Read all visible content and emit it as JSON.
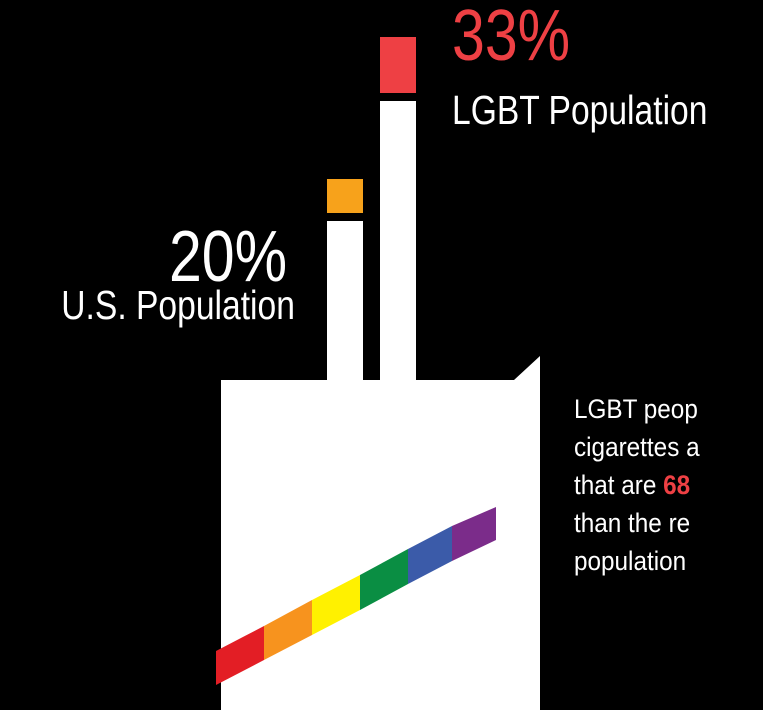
{
  "colors": {
    "background": "#000000",
    "lgbt": "#ee4044",
    "us": "#f7a21b",
    "cigarette": "#ffffff",
    "flag": [
      "#e31e25",
      "#f7931e",
      "#fff100",
      "#0a8e43",
      "#3b5ba9",
      "#7b2c8a"
    ]
  },
  "chart_data": {
    "type": "bar",
    "categories": [
      "U.S. Population",
      "LGBT Population"
    ],
    "values": [
      20,
      33
    ],
    "value_labels": [
      "20%",
      "33%"
    ],
    "ylim": [
      0,
      100
    ],
    "colors": [
      "#f7a21b",
      "#ee4044"
    ]
  },
  "copy": {
    "line1": "LGBT peop",
    "line2": "cigarettes a",
    "line3_pre": "that are ",
    "line3_hl": "68",
    "line4": "than the re",
    "line5": "population"
  }
}
